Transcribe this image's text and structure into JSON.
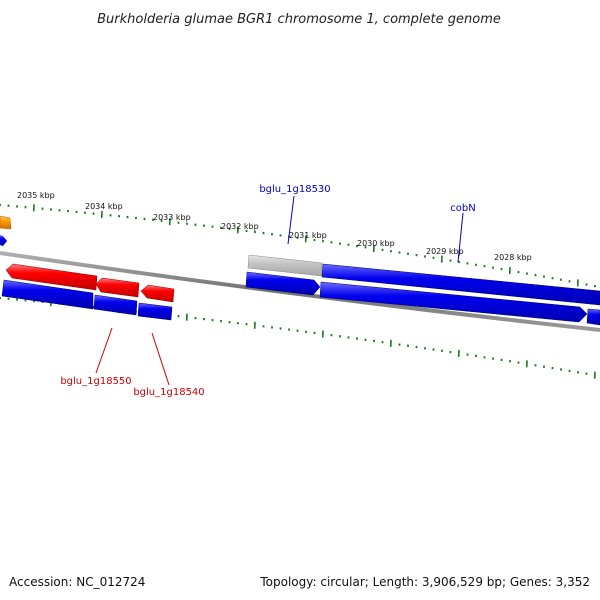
{
  "title": "Burkholderia glumae BGR1 chromosome 1, complete genome",
  "scale_labels": [
    "2035 kbp",
    "2034 kbp",
    "2033 kbp",
    "2032 kbp",
    "2031 kbp",
    "2030 kbp",
    "2029 kbp",
    "2028 kbp"
  ],
  "gene_labels": {
    "bglu_1g18530": "bglu_1g18530",
    "cobN": "cobN",
    "bglu_1g18550": "bglu_1g18550",
    "bglu_1g18540": "bglu_1g18540"
  },
  "colors": {
    "forward_strand": "#ff0000",
    "reverse_strand": "#0000ee",
    "pseudo_or_other": "#c0c0c0",
    "highlight": "#ff9900",
    "tick": "#1a7a1a",
    "backbone": "#808080",
    "label_red": "#cc0000",
    "label_blue": "#0000bb"
  },
  "footer": {
    "accession": "Accession: NC_012724",
    "summary": "Topology: circular; Length: 3,906,529 bp; Genes: 3,352"
  }
}
